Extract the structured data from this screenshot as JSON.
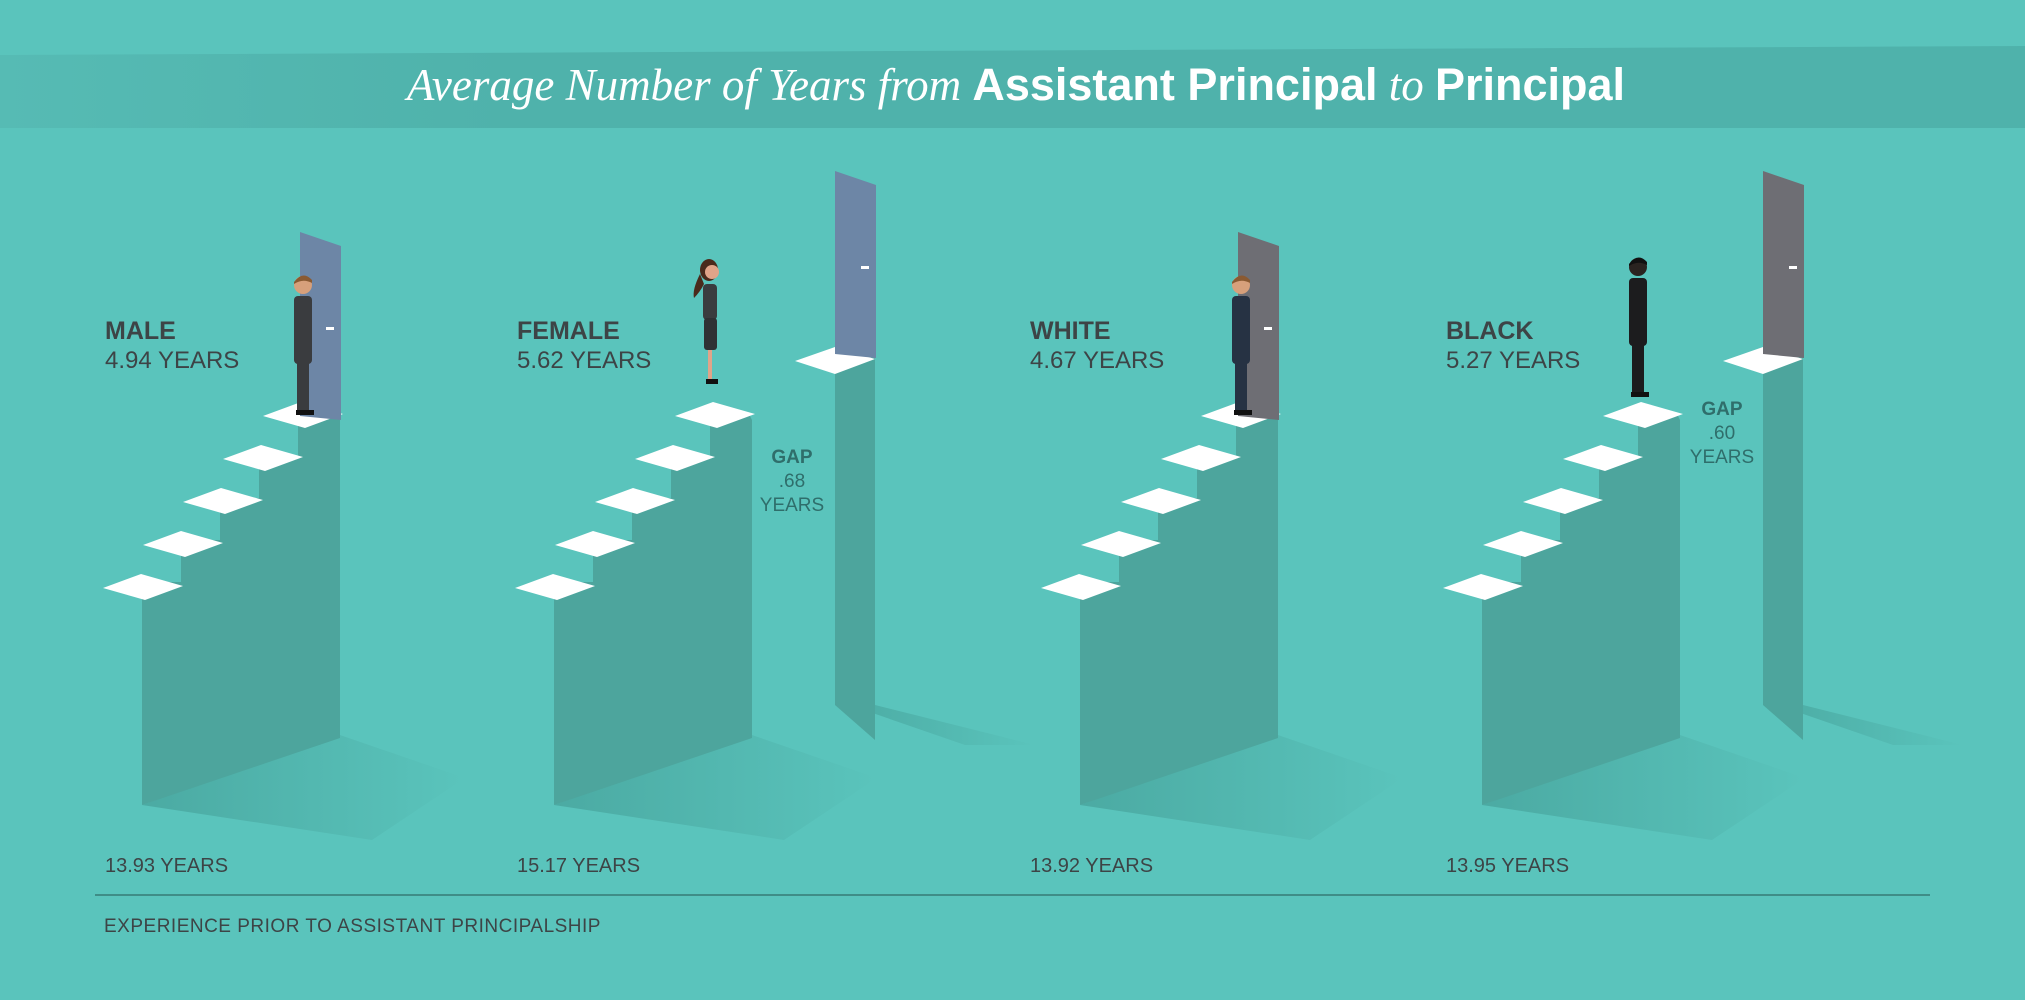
{
  "title": {
    "part1": "Average Number of Years from ",
    "part2": "Assistant Principal",
    "part3": " to ",
    "part4": "Principal"
  },
  "footer_label": "EXPERIENCE PRIOR TO ASSISTANT PRINCIPALSHIP",
  "colors": {
    "background": "#5ac4bc",
    "banner": "#4fb2ab",
    "stair_wall": "#4da59d",
    "step_top": "#ffffff",
    "door_blue": "#6d86a6",
    "door_gray": "#6e6e74",
    "label_dark": "#3d4446",
    "gap_text": "#2f6e6b"
  },
  "chart_data": {
    "type": "infographic-stair",
    "units": "years",
    "groups": [
      {
        "name": "MALE",
        "years_ap_to_principal": 4.94,
        "years_label": "4.94 YEARS",
        "prior_experience_years": 13.93,
        "prior_label": "13.93 YEARS",
        "figure": "man",
        "door_color": "blue"
      },
      {
        "name": "FEMALE",
        "years_ap_to_principal": 5.62,
        "years_label": "5.62 YEARS",
        "prior_experience_years": 15.17,
        "prior_label": "15.17 YEARS",
        "figure": "woman",
        "door_color": "blue",
        "gap": {
          "title": "GAP",
          "value": ".68",
          "unit": "YEARS"
        }
      },
      {
        "name": "WHITE",
        "years_ap_to_principal": 4.67,
        "years_label": "4.67 YEARS",
        "prior_experience_years": 13.92,
        "prior_label": "13.92 YEARS",
        "figure": "man-suit",
        "door_color": "gray"
      },
      {
        "name": "BLACK",
        "years_ap_to_principal": 5.27,
        "years_label": "5.27 YEARS",
        "prior_experience_years": 13.95,
        "prior_label": "13.95 YEARS",
        "figure": "man-black",
        "door_color": "gray",
        "gap": {
          "title": "GAP",
          "value": ".60",
          "unit": "YEARS"
        }
      }
    ]
  }
}
